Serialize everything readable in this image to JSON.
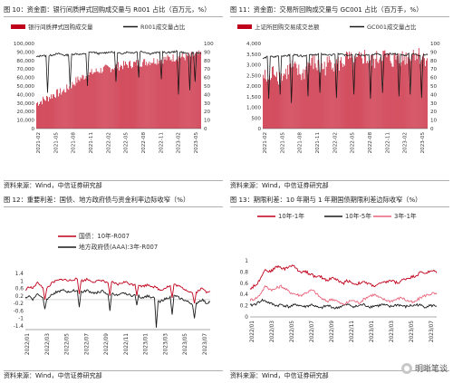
{
  "panels": [
    {
      "title": "图 10：资金面：银行间质押式回购成交量与 R001 占比（百万元，%）",
      "source": "资料来源：Wind，中信证券研究部"
    },
    {
      "title": "图 11：资金面：交易所回购成交量与 GC001 占比（百万手，%）",
      "source": "资料来源：Wind，中信证券研究部"
    },
    {
      "title": "图 12：重要利差：国债、地方政府债与资金利率边际收窄（%）",
      "source": "资料来源：Wind，中信证券研究部"
    },
    {
      "title": "图 13：期限利差：10 年期与 1 年期国债期限利差边际收窄（%）",
      "source": "资料来源：Wind，中信证券研究部"
    }
  ],
  "watermark": {
    "text": "明晰笔谈",
    "icon": "wechat-icon"
  },
  "chart_data": [
    {
      "type": "bar",
      "dual_axis": true,
      "legend": [
        {
          "name": "银行间质押式回购成交量",
          "color": "#c0001a",
          "kind": "bar"
        },
        {
          "name": "R001成交量占比",
          "color": "#1a1a1a",
          "kind": "line"
        }
      ],
      "ylim_left": [
        0,
        100000
      ],
      "yticks_left": [
        "100,000",
        "90,000",
        "80,000",
        "70,000",
        "60,000",
        "50,000",
        "40,000",
        "30,000",
        "20,000",
        "10,000",
        "0"
      ],
      "ylim_right": [
        0,
        100
      ],
      "yticks_right": [
        "100",
        "90",
        "80",
        "70",
        "60",
        "50",
        "40",
        "30",
        "20",
        "10",
        "0"
      ],
      "xticks": [
        "2021-02",
        "2021-05",
        "2021-08",
        "2021-11",
        "2022-02",
        "2022-05",
        "2022-08",
        "2022-11",
        "2023-02",
        "2023-05"
      ],
      "series": [
        {
          "name": "银行间质押式回购成交量",
          "kind": "bar",
          "x_start": "2021-02",
          "x_end": "2023-07",
          "base_values": [
            30000,
            33000,
            36000,
            40000,
            42000,
            45000,
            50000,
            56000,
            60000,
            63000,
            66000,
            68000,
            70000,
            71000,
            73000,
            74000,
            75000,
            76000,
            77000,
            78000,
            79000,
            80000,
            81000,
            82000,
            83000,
            84000,
            84000,
            85000,
            86000,
            87000
          ]
        },
        {
          "name": "R001成交量占比",
          "kind": "line",
          "values": [
            84,
            86,
            85,
            87,
            88,
            86,
            87,
            88,
            87,
            89,
            90,
            88,
            89,
            90,
            89,
            88,
            90,
            89,
            91,
            90,
            88,
            89,
            90,
            89,
            90,
            91,
            89,
            88,
            90,
            88
          ],
          "dips": [
            [
              2,
              42
            ],
            [
              6,
              48
            ],
            [
              9,
              50
            ],
            [
              14,
              55
            ],
            [
              18,
              60
            ],
            [
              22,
              58
            ],
            [
              25,
              40
            ],
            [
              27,
              45
            ],
            [
              28,
              55
            ]
          ]
        }
      ]
    },
    {
      "type": "bar",
      "dual_axis": true,
      "legend": [
        {
          "name": "上证所回购交易成交总额",
          "color": "#c0001a",
          "kind": "bar"
        },
        {
          "name": "GC001成交量占比",
          "color": "#1a1a1a",
          "kind": "line"
        }
      ],
      "ylim_left": [
        0,
        4000
      ],
      "yticks_left": [
        "4,000",
        "3,500",
        "3,000",
        "2,500",
        "2,000",
        "1,500",
        "1,000",
        "500",
        "0"
      ],
      "ylim_right": [
        0,
        100
      ],
      "yticks_right": [
        "100",
        "90",
        "80",
        "70",
        "60",
        "50",
        "40",
        "30",
        "20",
        "10",
        "0"
      ],
      "xticks": [
        "2021-02",
        "2021-05",
        "2021-08",
        "2021-11",
        "2022-02",
        "2022-05",
        "2022-08",
        "2022-11",
        "2023-02",
        "2023-05"
      ],
      "series": [
        {
          "name": "上证所回购交易成交总额",
          "kind": "bar",
          "x_start": "2021-02",
          "x_end": "2023-07",
          "base_values": [
            2500,
            2200,
            2800,
            2400,
            2600,
            2900,
            2700,
            2500,
            3000,
            3100,
            2800,
            2900,
            3200,
            3000,
            3100,
            3300,
            3000,
            3200,
            3400,
            3100,
            3200,
            3500,
            3300,
            3200,
            3400,
            3300,
            3500,
            3600,
            3300,
            3400
          ]
        },
        {
          "name": "GC001成交量占比",
          "kind": "line",
          "values": [
            82,
            85,
            84,
            86,
            85,
            87,
            86,
            85,
            87,
            86,
            88,
            87,
            86,
            88,
            87,
            86,
            88,
            87,
            86,
            87,
            88,
            86,
            87,
            88,
            87,
            86,
            88,
            87,
            86,
            87
          ],
          "dips": [
            [
              1,
              35
            ],
            [
              3,
              40
            ],
            [
              5,
              30
            ],
            [
              8,
              38
            ],
            [
              10,
              42
            ],
            [
              13,
              36
            ],
            [
              16,
              40
            ],
            [
              19,
              35
            ],
            [
              21,
              42
            ],
            [
              24,
              38
            ],
            [
              26,
              40
            ],
            [
              28,
              36
            ]
          ]
        }
      ]
    },
    {
      "type": "line",
      "legend": [
        {
          "name": "国债：10年-R007",
          "color": "#c0001a"
        },
        {
          "name": "地方政府债(AAA):3年-R007",
          "color": "#1a1a1a"
        }
      ],
      "ylim": [
        -1.6,
        1.4
      ],
      "yticks": [
        "1.4",
        "1.2",
        "1",
        "0.8",
        "0.6",
        "0.4",
        "0.2",
        "0",
        "-0.2",
        "-0.4",
        "-0.6",
        "-0.8",
        "-1",
        "-1.2",
        "-1.4",
        "-1.6"
      ],
      "yticks_visible": [
        "1.4",
        "1",
        "0.6",
        "0.2",
        "-0.2",
        "-0.6",
        "-1",
        "-1.4"
      ],
      "xticks": [
        "2022/01",
        "2022/03",
        "2022/05",
        "2022/07",
        "2022/09",
        "2022/11",
        "2023/01",
        "2023/03",
        "2023/05",
        "2023/07"
      ],
      "series": [
        {
          "name": "国债：10年-R007",
          "values": [
            0.5,
            0.7,
            0.6,
            0.9,
            0.8,
            0.5,
            0.7,
            0.9,
            1.0,
            1.05,
            1.1,
            1.0,
            1.05,
            1.1,
            1.05,
            1.0,
            1.1,
            1.0,
            0.95,
            1.0,
            1.05,
            0.9,
            0.95,
            0.9,
            0.8,
            0.9,
            0.95,
            0.85,
            0.8,
            0.9,
            0.7,
            0.75,
            0.8,
            0.7,
            0.65,
            0.5,
            0.6,
            0.7,
            0.75,
            0.8,
            0.7,
            0.6,
            0.5,
            0.4,
            0.3,
            0.5,
            0.6,
            0.4,
            0.5
          ],
          "dips": [
            [
              5,
              0.0
            ],
            [
              14,
              0.3
            ],
            [
              22,
              0.2
            ],
            [
              29,
              0.2
            ],
            [
              38,
              0.1
            ],
            [
              44,
              -0.2
            ]
          ]
        },
        {
          "name": "地方政府债(AAA):3年-R007",
          "values": [
            0.1,
            0.2,
            0.0,
            0.3,
            0.2,
            0.0,
            0.1,
            0.3,
            0.4,
            0.45,
            0.5,
            0.4,
            0.45,
            0.5,
            0.45,
            0.4,
            0.5,
            0.4,
            0.35,
            0.4,
            0.45,
            0.3,
            0.35,
            0.3,
            0.2,
            0.3,
            0.35,
            0.25,
            0.2,
            0.3,
            0.1,
            0.15,
            0.2,
            0.1,
            0.05,
            -0.1,
            0.0,
            0.1,
            0.15,
            0.2,
            0.1,
            0.0,
            -0.1,
            -0.2,
            -0.3,
            -0.1,
            0.0,
            -0.2,
            -0.1
          ],
          "dips": [
            [
              5,
              -0.5
            ],
            [
              14,
              -0.4
            ],
            [
              22,
              -0.6
            ],
            [
              29,
              -0.3
            ],
            [
              34,
              -1.5
            ],
            [
              38,
              -0.8
            ],
            [
              44,
              -1.0
            ]
          ]
        }
      ]
    },
    {
      "type": "line",
      "legend": [
        {
          "name": "10年-1年",
          "color": "#c0001a"
        },
        {
          "name": "10年-5年",
          "color": "#1a1a1a"
        },
        {
          "name": "3年-1年",
          "color": "#e8637a"
        }
      ],
      "ylim": [
        0,
        1
      ],
      "yticks": [
        "1",
        "0.9",
        "0.8",
        "0.7",
        "0.6",
        "0.5",
        "0.4",
        "0.3",
        "0.2",
        "0.1",
        "0"
      ],
      "yticks_visible": [
        "1",
        "0.8",
        "0.6",
        "0.4",
        "0.2",
        "0"
      ],
      "xticks": [
        "2022/01",
        "2022/03",
        "2022/05",
        "2022/07",
        "2022/09",
        "2022/11",
        "2023/01",
        "2023/03",
        "2023/05",
        "2023/07"
      ],
      "series": [
        {
          "name": "10年-1年",
          "values": [
            0.5,
            0.55,
            0.6,
            0.75,
            0.85,
            0.8,
            0.85,
            0.9,
            0.88,
            0.85,
            0.9,
            0.92,
            0.85,
            0.8,
            0.82,
            0.78,
            0.75,
            0.7,
            0.72,
            0.68,
            0.65,
            0.7,
            0.68,
            0.62,
            0.6,
            0.65,
            0.62,
            0.58,
            0.6,
            0.62,
            0.6,
            0.58,
            0.55,
            0.58,
            0.6,
            0.62,
            0.65,
            0.63,
            0.6,
            0.65,
            0.68,
            0.7,
            0.72,
            0.75,
            0.8,
            0.78,
            0.8,
            0.82,
            0.8
          ]
        },
        {
          "name": "10年-5年",
          "values": [
            0.2,
            0.22,
            0.25,
            0.3,
            0.28,
            0.25,
            0.22,
            0.2,
            0.22,
            0.2,
            0.18,
            0.2,
            0.22,
            0.2,
            0.18,
            0.2,
            0.22,
            0.18,
            0.15,
            0.18,
            0.2,
            0.18,
            0.15,
            0.18,
            0.2,
            0.22,
            0.2,
            0.18,
            0.2,
            0.22,
            0.2,
            0.18,
            0.2,
            0.2,
            0.22,
            0.2,
            0.18,
            0.2,
            0.22,
            0.2,
            0.18,
            0.2,
            0.2,
            0.22,
            0.2,
            0.18,
            0.2,
            0.2,
            0.2
          ]
        },
        {
          "name": "3年-1年",
          "values": [
            0.3,
            0.32,
            0.35,
            0.45,
            0.55,
            0.5,
            0.48,
            0.52,
            0.55,
            0.5,
            0.45,
            0.42,
            0.4,
            0.38,
            0.42,
            0.45,
            0.48,
            0.42,
            0.35,
            0.3,
            0.28,
            0.32,
            0.3,
            0.25,
            0.22,
            0.25,
            0.3,
            0.28,
            0.25,
            0.3,
            0.35,
            0.38,
            0.4,
            0.35,
            0.32,
            0.3,
            0.28,
            0.3,
            0.32,
            0.35,
            0.3,
            0.28,
            0.25,
            0.3,
            0.35,
            0.38,
            0.4,
            0.42,
            0.4
          ]
        }
      ]
    }
  ]
}
